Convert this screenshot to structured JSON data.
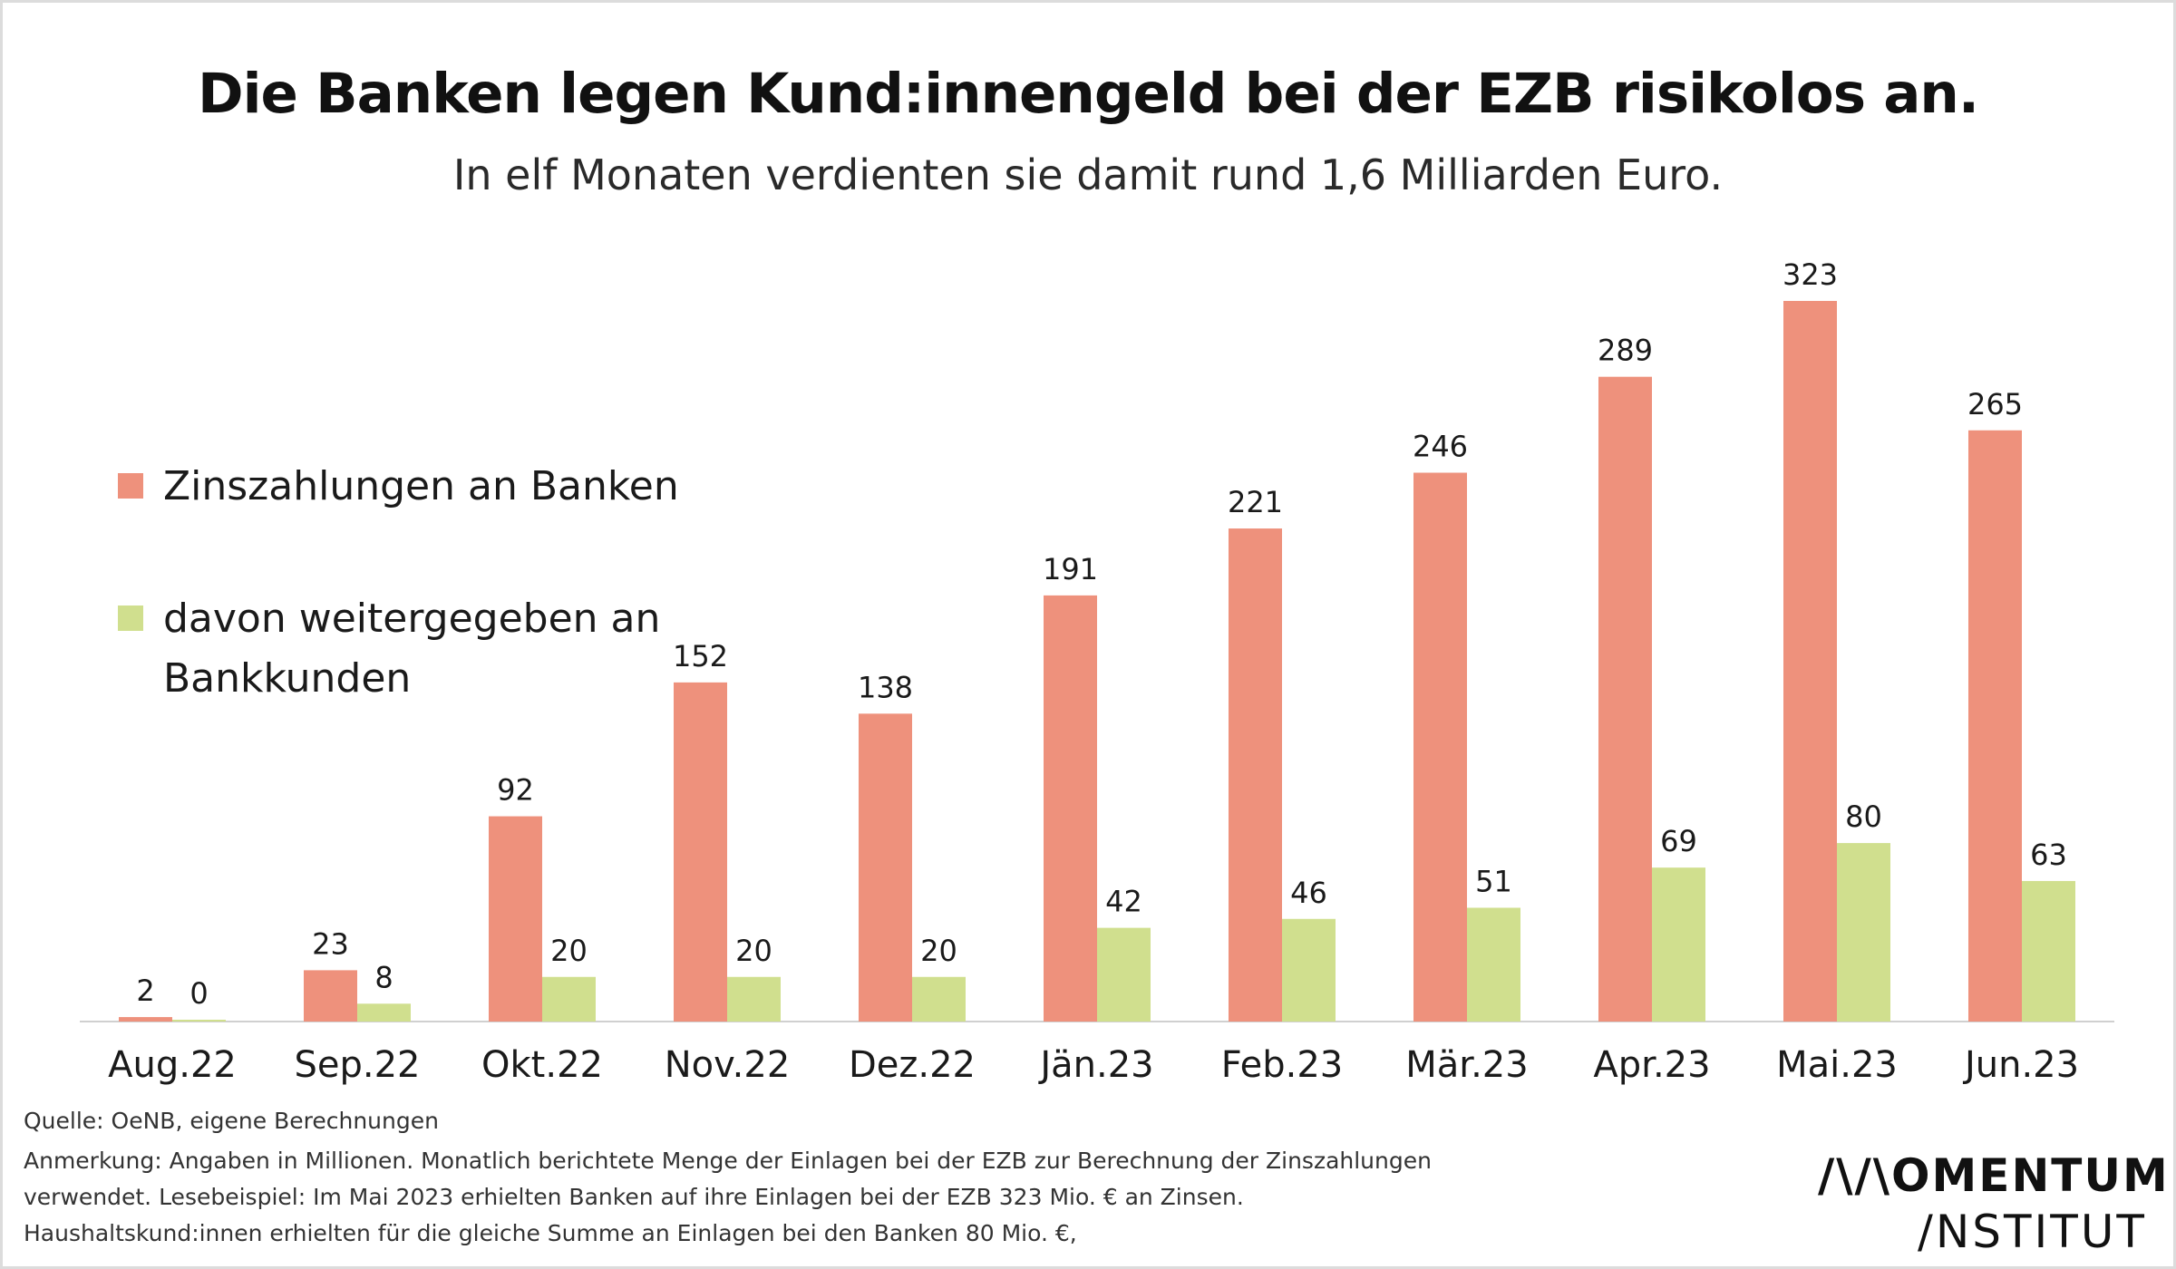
{
  "title": "Die Banken legen Kund:innengeld bei der EZB risikolos an.",
  "subtitle": "In elf Monaten verdienten sie damit rund 1,6 Milliarden Euro.",
  "colors": {
    "zins": "#ee917c",
    "weiter": "#d0df8e",
    "axis": "#d0d0d0"
  },
  "footer": {
    "source": "Quelle: OeNB, eigene Berechnungen",
    "note_line1": "Anmerkung: Angaben in Millionen. Monatlich berichtete Menge der Einlagen bei der EZB zur Berechnung der Zinszahlungen",
    "note_line2": "verwendet. Lesebeispiel: Im Mai 2023 erhielten Banken auf ihre Einlagen bei der EZB 323 Mio. € an Zinsen.",
    "note_line3": "Haushaltskund:innen erhielten für die gleiche Summe an Einlagen bei den Banken 80 Mio. €,"
  },
  "logo": {
    "line1": "/\\/\\OMENTUM",
    "line2": "/NSTITUT"
  },
  "chart_data": {
    "type": "bar",
    "categories": [
      "Aug.22",
      "Sep.22",
      "Okt.22",
      "Nov.22",
      "Dez.22",
      "Jän.23",
      "Feb.23",
      "Mär.23",
      "Apr.23",
      "Mai.23",
      "Jun.23"
    ],
    "series": [
      {
        "name": "Zinszahlungen an Banken",
        "values": [
          2,
          23,
          92,
          152,
          138,
          191,
          221,
          246,
          289,
          323,
          265
        ]
      },
      {
        "name": "davon weitergegeben an Bankkunden",
        "values": [
          0,
          8,
          20,
          20,
          20,
          42,
          46,
          51,
          69,
          80,
          63
        ]
      }
    ],
    "ylim": [
      0,
      323
    ],
    "grid": false,
    "legend": "left",
    "data_labels": true
  }
}
